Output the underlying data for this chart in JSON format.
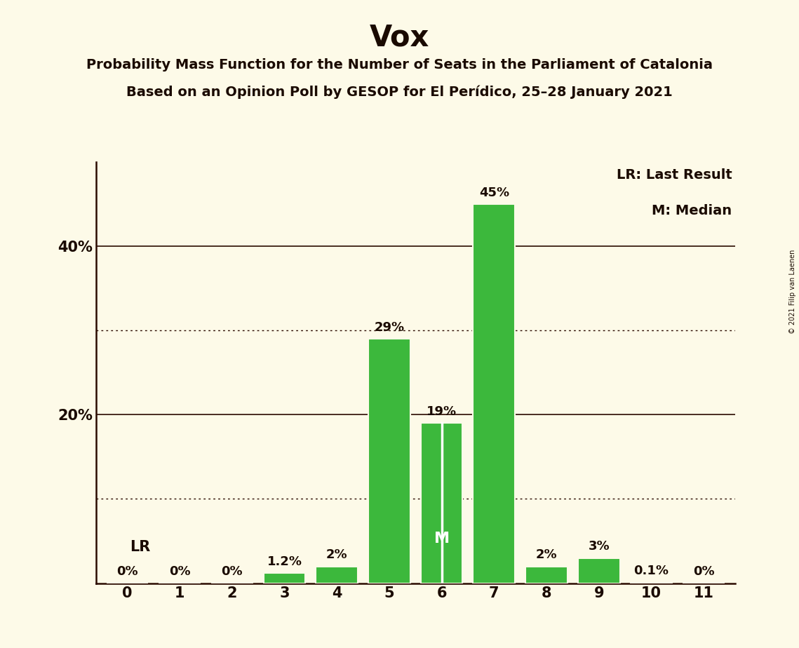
{
  "title": "Vox",
  "subtitle1": "Probability Mass Function for the Number of Seats in the Parliament of Catalonia",
  "subtitle2": "Based on an Opinion Poll by GESOP for El Perídico, 25–28 January 2021",
  "copyright": "© 2021 Filip van Laenen",
  "categories": [
    0,
    1,
    2,
    3,
    4,
    5,
    6,
    7,
    8,
    9,
    10,
    11
  ],
  "values": [
    0.0,
    0.0,
    0.0,
    1.2,
    2.0,
    29.0,
    19.0,
    45.0,
    2.0,
    3.0,
    0.1,
    0.0
  ],
  "labels": [
    "0%",
    "0%",
    "0%",
    "1.2%",
    "2%",
    "29%",
    "19%",
    "45%",
    "2%",
    "3%",
    "0.1%",
    "0%"
  ],
  "bar_color": "#3cb83c",
  "background_color": "#fdfae8",
  "text_color": "#1a0a00",
  "grid_color": "#2a0a00",
  "dotted_grid_color": "#2a0a00",
  "ylim": [
    0,
    50
  ],
  "yticks": [
    20,
    40
  ],
  "ytick_labels": [
    "20%",
    "40%"
  ],
  "solid_gridlines": [
    20,
    40
  ],
  "dotted_gridlines": [
    10,
    30
  ],
  "lr_seat": 0,
  "median_seat": 6,
  "lr_label": "LR",
  "median_label": "M",
  "legend_lr": "LR: Last Result",
  "legend_m": "M: Median",
  "bar_edge_color": "#fdfae8",
  "bar_linewidth": 1.5,
  "title_fontsize": 30,
  "subtitle_fontsize": 14,
  "tick_fontsize": 15,
  "label_fontsize": 13
}
